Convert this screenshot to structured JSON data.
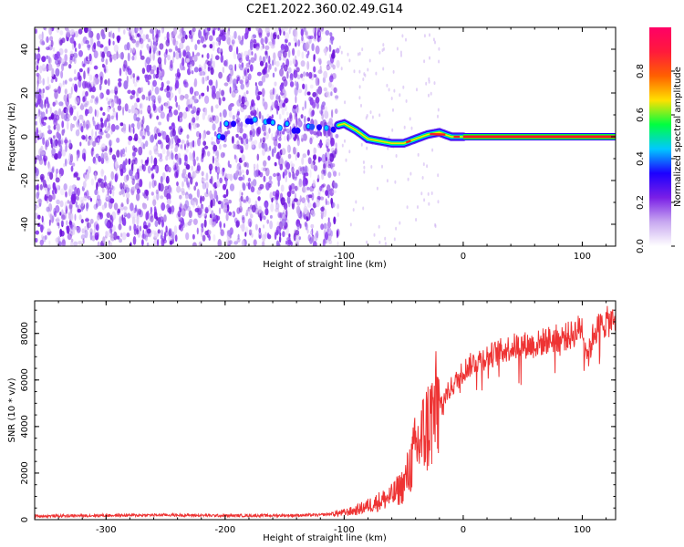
{
  "title": "C2E1.2022.360.02.49.G14",
  "colors": {
    "signal": "#ff1a1a",
    "snr_line": "#ee3333",
    "noise_purple": "#7a1fe6",
    "axis": "#000000"
  },
  "colorbar": {
    "label": "Normalized spectral amplitude",
    "ticks": [
      "0.0",
      "0.2",
      "0.4",
      "0.6",
      "0.8"
    ],
    "tick_values": [
      0.0,
      0.2,
      0.4,
      0.6,
      0.8
    ],
    "range": [
      0,
      1
    ],
    "colormap": [
      "#ffffff",
      "#c8a8f0",
      "#7a1fe6",
      "#1d00ff",
      "#00c8ff",
      "#00ff40",
      "#ffe000",
      "#ff6000",
      "#ff1a3c",
      "#ff0066"
    ]
  },
  "chart_data": [
    {
      "type": "heatmap",
      "xlabel": "Height of straight line (km)",
      "ylabel": "Frequency (Hz)",
      "xlim": [
        -360,
        128
      ],
      "ylim": [
        -50,
        50
      ],
      "x_ticks": [
        "-300",
        "-200",
        "-100",
        "0",
        "100"
      ],
      "x_tick_values": [
        -300,
        -200,
        -100,
        0,
        100
      ],
      "y_ticks": [
        "-40",
        "-20",
        "0",
        "20",
        "40"
      ],
      "y_tick_values": [
        -40,
        -20,
        0,
        20,
        40
      ],
      "noise_region_x": [
        -360,
        -105
      ],
      "signal_ridge": [
        {
          "x": -200,
          "y": 7
        },
        {
          "x": -180,
          "y": 7
        },
        {
          "x": -140,
          "y": 4
        },
        {
          "x": -120,
          "y": 3
        },
        {
          "x": -100,
          "y": 6
        },
        {
          "x": -90,
          "y": 3
        },
        {
          "x": -80,
          "y": -1
        },
        {
          "x": -70,
          "y": -2
        },
        {
          "x": -60,
          "y": -3
        },
        {
          "x": -50,
          "y": -3
        },
        {
          "x": -40,
          "y": -1
        },
        {
          "x": -30,
          "y": 1
        },
        {
          "x": -20,
          "y": 2
        },
        {
          "x": -10,
          "y": 0
        },
        {
          "x": 0,
          "y": 0
        },
        {
          "x": 128,
          "y": 0
        }
      ]
    },
    {
      "type": "line",
      "xlabel": "Height of straight line (km)",
      "ylabel": "SNR (10 * v/v)",
      "xlim": [
        -360,
        128
      ],
      "ylim": [
        0,
        9400
      ],
      "x_ticks": [
        "-300",
        "-200",
        "-100",
        "0",
        "100"
      ],
      "x_tick_values": [
        -300,
        -200,
        -100,
        0,
        100
      ],
      "y_ticks": [
        "0",
        "2000",
        "4000",
        "6000",
        "8000"
      ],
      "y_tick_values": [
        0,
        2000,
        4000,
        6000,
        8000
      ],
      "series": [
        {
          "x": [
            -360,
            -300,
            -250,
            -200,
            -150,
            -120,
            -100,
            -90,
            -80,
            -70,
            -60,
            -50,
            -45,
            -40,
            -35,
            -30,
            -25,
            -20,
            -15,
            -10,
            -5,
            0,
            10,
            20,
            30,
            40,
            50,
            60,
            70,
            80,
            90,
            100,
            105,
            110,
            120,
            128
          ],
          "y": [
            150,
            180,
            200,
            170,
            180,
            200,
            300,
            400,
            600,
            800,
            1000,
            1500,
            2200,
            3000,
            3500,
            4000,
            4500,
            5000,
            5300,
            5700,
            6000,
            6400,
            6800,
            7000,
            7200,
            7400,
            7500,
            7500,
            7700,
            7800,
            7900,
            8300,
            7000,
            8100,
            8500,
            8500
          ]
        }
      ]
    }
  ]
}
